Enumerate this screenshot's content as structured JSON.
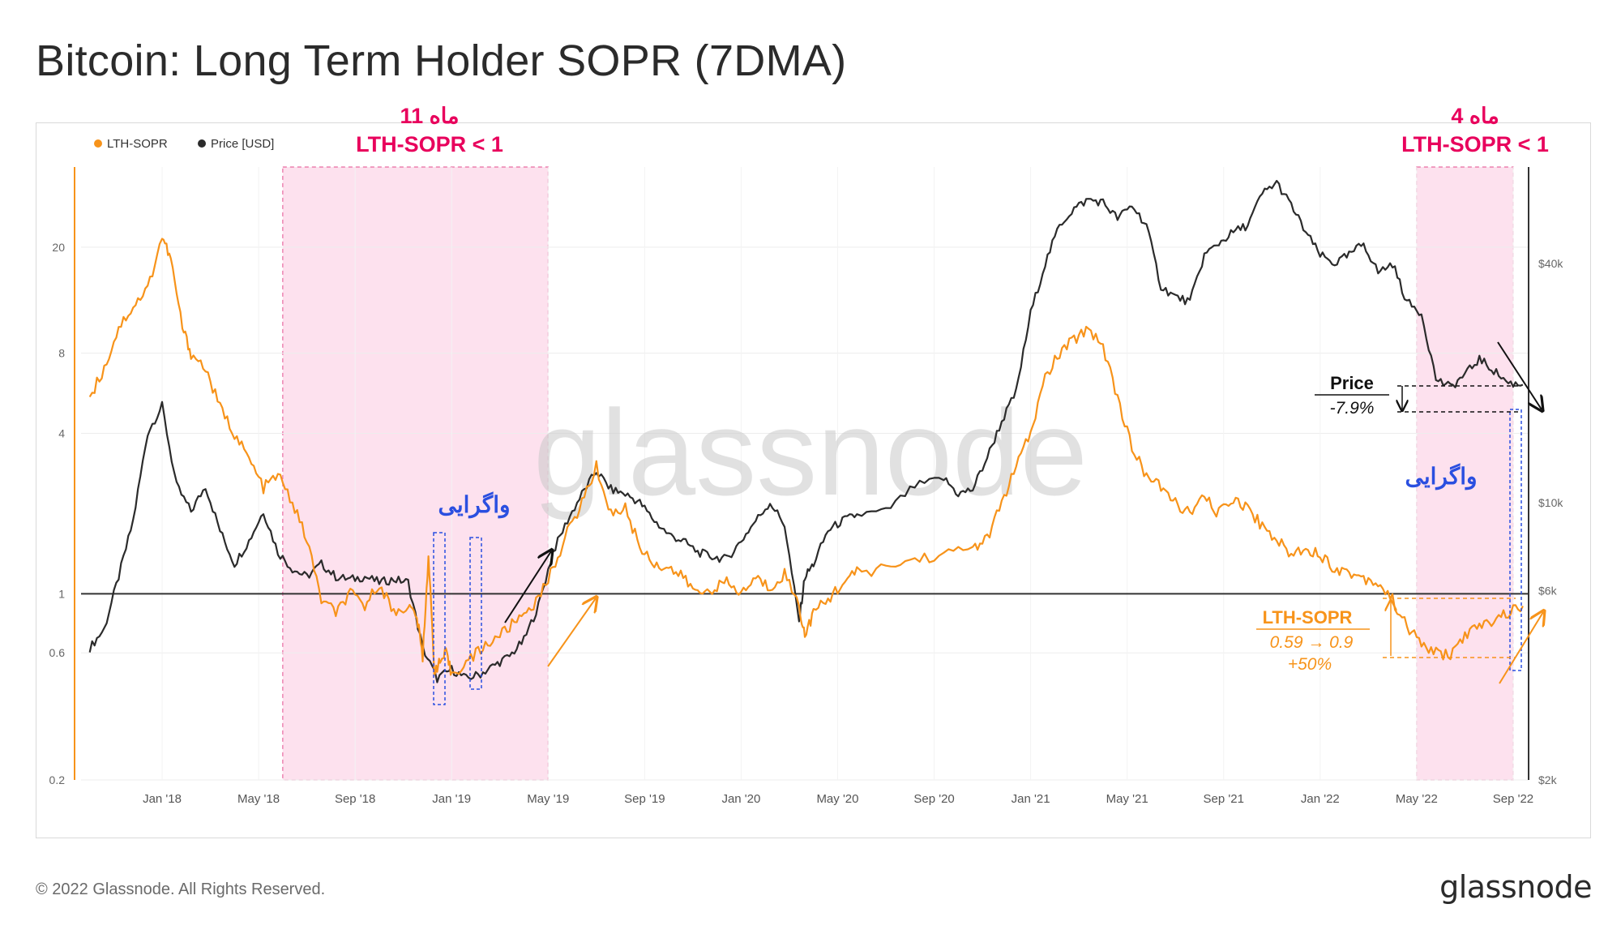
{
  "title": "Bitcoin: Long Term Holder SOPR (7DMA)",
  "footer": {
    "copyright": "© 2022 Glassnode. All Rights Reserved.",
    "brand": "glassnode"
  },
  "watermark": "glassnode",
  "colors": {
    "sopr": "#f7931a",
    "price": "#2b2b2b",
    "highlight": "#fde1ee",
    "annotation_pink": "#e8005c",
    "annotation_blue": "#2a4fe0"
  },
  "annotations": {
    "period1_line1": "11 ماه",
    "period1_line2": "LTH-SOPR < 1",
    "period2_line1": "4 ماه",
    "period2_line2": "LTH-SOPR < 1",
    "divergence1": "واگرایی",
    "divergence2": "واگرایی",
    "price_label": "Price",
    "price_change": "-7.9%",
    "sopr_label": "LTH-SOPR",
    "sopr_change": "0.59 → 0.9",
    "sopr_pct": "+50%"
  },
  "chart_data": {
    "type": "line",
    "legend": [
      {
        "name": "LTH-SOPR",
        "color": "#f7931a"
      },
      {
        "name": "Price [USD]",
        "color": "#2b2b2b"
      }
    ],
    "legend_position": "top-left",
    "x_ticks": [
      "Jan '18",
      "May '18",
      "Sep '18",
      "Jan '19",
      "May '19",
      "Sep '19",
      "Jan '20",
      "May '20",
      "Sep '20",
      "Jan '21",
      "May '21",
      "Sep '21",
      "Jan '22",
      "May '22",
      "Sep '22"
    ],
    "y_left": {
      "scale": "log",
      "ticks": [
        "0.2",
        "0.6",
        "1",
        "4",
        "8",
        "20"
      ],
      "ylim": [
        0.2,
        40
      ]
    },
    "y_right": {
      "scale": "log",
      "ticks": [
        "$2k",
        "$6k",
        "$10k",
        "$40k"
      ],
      "ylim": [
        2000,
        70000
      ]
    },
    "reference_line": 1,
    "shaded_periods": [
      {
        "from": "2018-06",
        "to": "2019-05"
      },
      {
        "from": "2022-05",
        "to": "2022-09"
      }
    ],
    "series": [
      {
        "name": "LTH-SOPR",
        "axis": "left",
        "x": [
          2017.75,
          2017.8,
          2017.85,
          2017.9,
          2017.95,
          2018.0,
          2018.03,
          2018.07,
          2018.1,
          2018.15,
          2018.2,
          2018.25,
          2018.3,
          2018.35,
          2018.4,
          2018.45,
          2018.5,
          2018.55,
          2018.6,
          2018.65,
          2018.7,
          2018.75,
          2018.8,
          2018.85,
          2018.88,
          2018.9,
          2018.92,
          2018.94,
          2018.96,
          2018.98,
          2019.0,
          2019.05,
          2019.1,
          2019.15,
          2019.2,
          2019.25,
          2019.3,
          2019.35,
          2019.4,
          2019.45,
          2019.5,
          2019.55,
          2019.6,
          2019.65,
          2019.7,
          2019.75,
          2019.8,
          2019.85,
          2019.9,
          2019.95,
          2020.0,
          2020.05,
          2020.1,
          2020.15,
          2020.2,
          2020.22,
          2020.25,
          2020.3,
          2020.35,
          2020.4,
          2020.5,
          2020.6,
          2020.7,
          2020.8,
          2020.85,
          2020.9,
          2020.95,
          2021.0,
          2021.05,
          2021.1,
          2021.15,
          2021.2,
          2021.25,
          2021.3,
          2021.35,
          2021.4,
          2021.45,
          2021.5,
          2021.55,
          2021.6,
          2021.65,
          2021.7,
          2021.75,
          2021.8,
          2021.85,
          2021.9,
          2021.95,
          2022.0,
          2022.05,
          2022.1,
          2022.15,
          2022.2,
          2022.25,
          2022.3,
          2022.35,
          2022.4,
          2022.45,
          2022.5,
          2022.55,
          2022.6,
          2022.65,
          2022.7
        ],
        "values": [
          5.5,
          7,
          10,
          12,
          14,
          22,
          18,
          10,
          8,
          7,
          5,
          4,
          3.2,
          2.5,
          2.8,
          2.2,
          1.6,
          0.95,
          0.85,
          1.0,
          0.9,
          1.1,
          0.85,
          0.9,
          0.82,
          0.58,
          1.4,
          0.52,
          0.55,
          0.6,
          0.5,
          0.55,
          0.62,
          0.68,
          0.75,
          0.85,
          0.95,
          1.25,
          1.7,
          2.2,
          3.0,
          2.0,
          2.1,
          1.5,
          1.3,
          1.25,
          1.15,
          1.0,
          1.05,
          1.1,
          1.0,
          1.15,
          1.05,
          1.2,
          0.9,
          0.7,
          0.85,
          0.95,
          1.1,
          1.2,
          1.25,
          1.35,
          1.4,
          1.5,
          1.6,
          2.2,
          3.0,
          4.0,
          6.5,
          8.0,
          9.0,
          10.0,
          8.5,
          5.5,
          3.5,
          2.8,
          2.5,
          2.2,
          2.0,
          2.3,
          2.0,
          2.3,
          2.1,
          1.8,
          1.6,
          1.4,
          1.5,
          1.4,
          1.25,
          1.2,
          1.15,
          1.1,
          0.95,
          0.75,
          0.65,
          0.6,
          0.59,
          0.7,
          0.75,
          0.8,
          0.85,
          0.9
        ]
      },
      {
        "name": "Price [USD]",
        "axis": "right",
        "x": [
          2017.75,
          2017.8,
          2017.85,
          2017.9,
          2017.95,
          2018.0,
          2018.05,
          2018.1,
          2018.15,
          2018.2,
          2018.25,
          2018.3,
          2018.35,
          2018.4,
          2018.45,
          2018.5,
          2018.55,
          2018.6,
          2018.65,
          2018.7,
          2018.75,
          2018.8,
          2018.85,
          2018.9,
          2018.95,
          2019.0,
          2019.05,
          2019.1,
          2019.15,
          2019.2,
          2019.25,
          2019.3,
          2019.35,
          2019.4,
          2019.45,
          2019.5,
          2019.55,
          2019.6,
          2019.65,
          2019.7,
          2019.75,
          2019.8,
          2019.85,
          2019.9,
          2019.95,
          2020.0,
          2020.05,
          2020.1,
          2020.15,
          2020.2,
          2020.22,
          2020.25,
          2020.3,
          2020.35,
          2020.4,
          2020.5,
          2020.6,
          2020.7,
          2020.75,
          2020.8,
          2020.85,
          2020.9,
          2020.95,
          2021.0,
          2021.05,
          2021.1,
          2021.15,
          2021.2,
          2021.25,
          2021.3,
          2021.35,
          2021.4,
          2021.45,
          2021.5,
          2021.55,
          2021.6,
          2021.65,
          2021.7,
          2021.75,
          2021.8,
          2021.85,
          2021.9,
          2021.95,
          2022.0,
          2022.05,
          2022.1,
          2022.15,
          2022.2,
          2022.25,
          2022.3,
          2022.35,
          2022.4,
          2022.45,
          2022.5,
          2022.55,
          2022.6,
          2022.65,
          2022.7
        ],
        "values": [
          4300,
          4800,
          6500,
          9000,
          15000,
          17500,
          11000,
          9500,
          11000,
          8500,
          7000,
          8000,
          9500,
          7500,
          6800,
          6500,
          7000,
          6500,
          6400,
          6500,
          6300,
          6400,
          6300,
          4300,
          3600,
          3800,
          3600,
          3700,
          3900,
          4100,
          4500,
          5500,
          7500,
          9000,
          10500,
          12000,
          10800,
          10500,
          10000,
          9000,
          8300,
          8000,
          7500,
          7300,
          7200,
          8000,
          9000,
          10000,
          8800,
          5000,
          6500,
          7000,
          8500,
          9000,
          9300,
          9500,
          11000,
          11500,
          10500,
          10800,
          13000,
          16000,
          19000,
          30000,
          40000,
          50000,
          55000,
          58000,
          57000,
          52000,
          56000,
          50000,
          35000,
          33000,
          32000,
          42000,
          45000,
          48000,
          50000,
          60000,
          64000,
          56000,
          48000,
          42000,
          40000,
          42000,
          45000,
          38000,
          40000,
          32000,
          30000,
          20500,
          19500,
          21000,
          23000,
          21500,
          20000,
          19800
        ]
      }
    ]
  }
}
